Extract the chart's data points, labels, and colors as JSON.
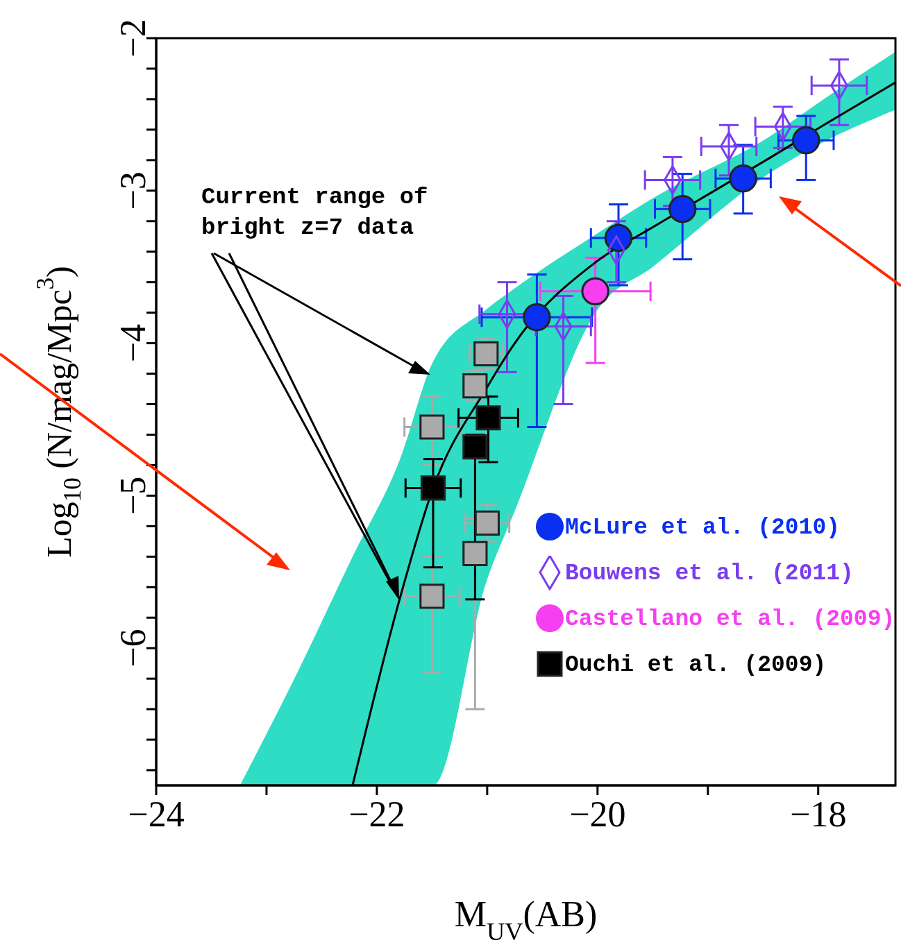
{
  "chart_data": {
    "type": "scatter",
    "xlabel": "M$_{UV}$(AB)",
    "ylabel": "Log$_{10}$ (N/mag/Mpc$^{3}$)",
    "annotations": [
      "Current range of bright z=7 data"
    ],
    "xlim": [
      -24,
      -17.3
    ],
    "xticks": [
      -24,
      {
        "value": -23,
        "label": null
      },
      -22,
      {
        "value": -21,
        "label": null
      },
      -20,
      {
        "value": -19,
        "label": null
      },
      -18
    ],
    "ylim": [
      -6.9,
      -2
    ],
    "yticks": [
      -2,
      {
        "value": -2.2,
        "label": null
      },
      {
        "value": -2.4,
        "label": null
      },
      {
        "value": -2.6,
        "label": null
      },
      {
        "value": -2.8,
        "label": null
      },
      -3,
      {
        "value": -3.2,
        "label": null
      },
      {
        "value": -3.4,
        "label": null
      },
      {
        "value": -3.6,
        "label": null
      },
      {
        "value": -3.8,
        "label": null
      },
      -4,
      {
        "value": -4.2,
        "label": null
      },
      {
        "value": -4.4,
        "label": null
      },
      {
        "value": -4.6,
        "label": null
      },
      {
        "value": -4.8,
        "label": null
      },
      -5,
      {
        "value": -5.2,
        "label": null
      },
      {
        "value": -5.4,
        "label": null
      },
      {
        "value": -5.6,
        "label": null
      },
      {
        "value": -5.8,
        "label": null
      },
      -6,
      {
        "value": -6.2,
        "label": null
      },
      {
        "value": -6.4,
        "label": null
      },
      {
        "value": -6.6,
        "label": null
      },
      {
        "value": -6.8,
        "label": null
      }
    ],
    "legend": "bottom right",
    "series": [
      {
        "type": "line",
        "color": "#000000",
        "x": [
          -23.24,
          -22.7,
          -22.22,
          -21.79,
          -21.49,
          -21.01,
          -20.75,
          -20.0,
          -19.5,
          -18.45,
          -17.95,
          -17.3
        ],
        "values": [
          null,
          null,
          -6.9,
          -5.67,
          -4.95,
          -4.3,
          -4.0,
          -3.46,
          -3.24,
          -2.79,
          -2.57,
          -2.29
        ],
        "lower": [
          -6.9,
          -6.9,
          -6.9,
          -6.9,
          -6.9,
          -5.57,
          -5.1,
          -3.78,
          -3.5,
          -2.89,
          -2.68,
          -2.47
        ],
        "upper": [
          -6.9,
          -6.13,
          -5.4,
          -4.76,
          -4.12,
          -3.78,
          -3.64,
          -3.28,
          -3.05,
          -2.65,
          -2.4,
          -2.09
        ]
      },
      {
        "color": "#aaaaaa",
        "marker": "square",
        "x": [
          -21.01,
          -21.11,
          -21.5,
          -21.0,
          -21.11,
          -21.5
        ],
        "values": [
          -4.07,
          -4.28,
          -4.55,
          -5.18,
          -5.38,
          -5.66
        ],
        "errors": [
          0.1,
          0.1,
          [
            -4.8,
            -4.35
          ],
          0.12,
          [
            -6.4,
            -5.15
          ],
          [
            -6.16,
            -5.4
          ]
        ],
        "xerrors": [
          0.15,
          null,
          0.25,
          0.2,
          null,
          0.25
        ]
      },
      {
        "name": "McLure et al. (2010)",
        "color": "#0a2ff0",
        "marker": "circle",
        "x": [
          -20.55,
          -19.81,
          -19.23,
          -18.68,
          -18.11
        ],
        "values": [
          -3.83,
          -3.31,
          -3.12,
          -2.92,
          -2.67
        ],
        "errors": [
          [
            -4.55,
            -3.55
          ],
          [
            -3.62,
            -3.09
          ],
          [
            -3.45,
            -2.89
          ],
          [
            -3.15,
            -2.7
          ],
          [
            -2.93,
            -2.51
          ]
        ],
        "xerrors": [
          0.5,
          0.25,
          0.25,
          0.25,
          0.25
        ]
      },
      {
        "name": "Bouwens et al. (2011)",
        "color": "#7a3cf0",
        "marker": "diamond",
        "x": [
          -20.82,
          -20.31,
          -19.83,
          -19.32,
          -18.81,
          -18.32,
          -17.81
        ],
        "values": [
          -3.81,
          -3.89,
          -3.39,
          -2.93,
          -2.71,
          -2.58,
          -2.31
        ],
        "errors": [
          [
            -4.19,
            -3.6
          ],
          [
            -4.4,
            -3.69
          ],
          [
            -3.6,
            -3.2
          ],
          [
            -3.1,
            -2.78
          ],
          [
            -2.9,
            -2.57
          ],
          [
            -2.72,
            -2.45
          ],
          [
            -2.57,
            -2.14
          ]
        ],
        "xerrors": [
          0.25,
          0.25,
          null,
          0.25,
          0.25,
          0.25,
          0.25
        ]
      },
      {
        "name": "Castellano et al. (2009)",
        "color": "#f53ff0",
        "marker": "circle",
        "x": [
          -20.02
        ],
        "values": [
          -3.66
        ],
        "errors": [
          [
            -4.13,
            -3.44
          ]
        ],
        "xerrors": [
          0.5
        ]
      },
      {
        "name": "Ouchi et al. (2009)",
        "color": "#000000",
        "marker": "square",
        "x": [
          -21.49,
          -21.11,
          -20.99
        ],
        "values": [
          -4.95,
          -4.68,
          -4.49
        ],
        "errors": [
          [
            -5.47,
            -4.76
          ],
          [
            -5.68,
            -4.6
          ],
          [
            -4.78,
            -4.35
          ]
        ],
        "xerrors": [
          0.25,
          null,
          0.27
        ]
      }
    ]
  }
}
